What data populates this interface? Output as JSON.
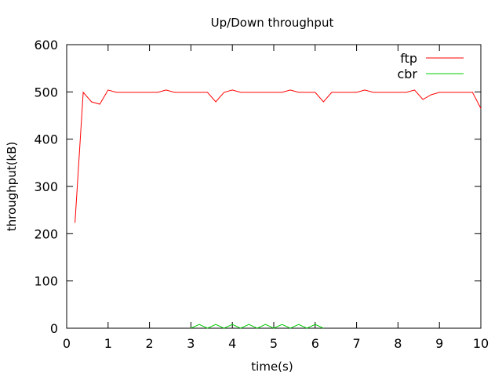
{
  "chart_data": {
    "type": "line",
    "title": "Up/Down throughput",
    "xlabel": "time(s)",
    "ylabel": "throughput(kB)",
    "xlim": [
      0,
      10
    ],
    "ylim": [
      0,
      600
    ],
    "xticks": [
      0,
      1,
      2,
      3,
      4,
      5,
      6,
      7,
      8,
      9,
      10
    ],
    "yticks": [
      0,
      100,
      200,
      300,
      400,
      500,
      600
    ],
    "grid": false,
    "legend_position": "top-right",
    "series": [
      {
        "name": "ftp",
        "color": "#ff0000",
        "x": [
          0.2,
          0.4,
          0.6,
          0.8,
          1.0,
          1.2,
          1.4,
          1.6,
          1.8,
          2.0,
          2.2,
          2.4,
          2.6,
          2.8,
          3.0,
          3.2,
          3.4,
          3.6,
          3.8,
          4.0,
          4.2,
          4.4,
          4.6,
          4.8,
          5.0,
          5.2,
          5.4,
          5.6,
          5.8,
          6.0,
          6.2,
          6.4,
          6.6,
          6.8,
          7.0,
          7.2,
          7.4,
          7.6,
          7.8,
          8.0,
          8.2,
          8.4,
          8.6,
          8.8,
          9.0,
          9.2,
          9.4,
          9.6,
          9.8,
          10.0
        ],
        "y": [
          223,
          499,
          479,
          474,
          504,
          499,
          499,
          499,
          499,
          499,
          499,
          504,
          499,
          499,
          499,
          499,
          499,
          479,
          499,
          504,
          499,
          499,
          499,
          499,
          499,
          499,
          504,
          499,
          499,
          499,
          479,
          499,
          499,
          499,
          499,
          504,
          499,
          499,
          499,
          499,
          499,
          504,
          484,
          494,
          499,
          499,
          499,
          499,
          499,
          465
        ]
      },
      {
        "name": "cbr",
        "color": "#00cc00",
        "x": [
          3.0,
          3.2,
          3.4,
          3.6,
          3.8,
          4.0,
          4.2,
          4.4,
          4.6,
          4.8,
          5.0,
          5.2,
          5.4,
          5.6,
          5.8,
          6.0,
          6.2
        ],
        "y": [
          0,
          8,
          0,
          8,
          0,
          8,
          0,
          8,
          0,
          8,
          0,
          8,
          0,
          8,
          0,
          8,
          0
        ]
      }
    ]
  }
}
